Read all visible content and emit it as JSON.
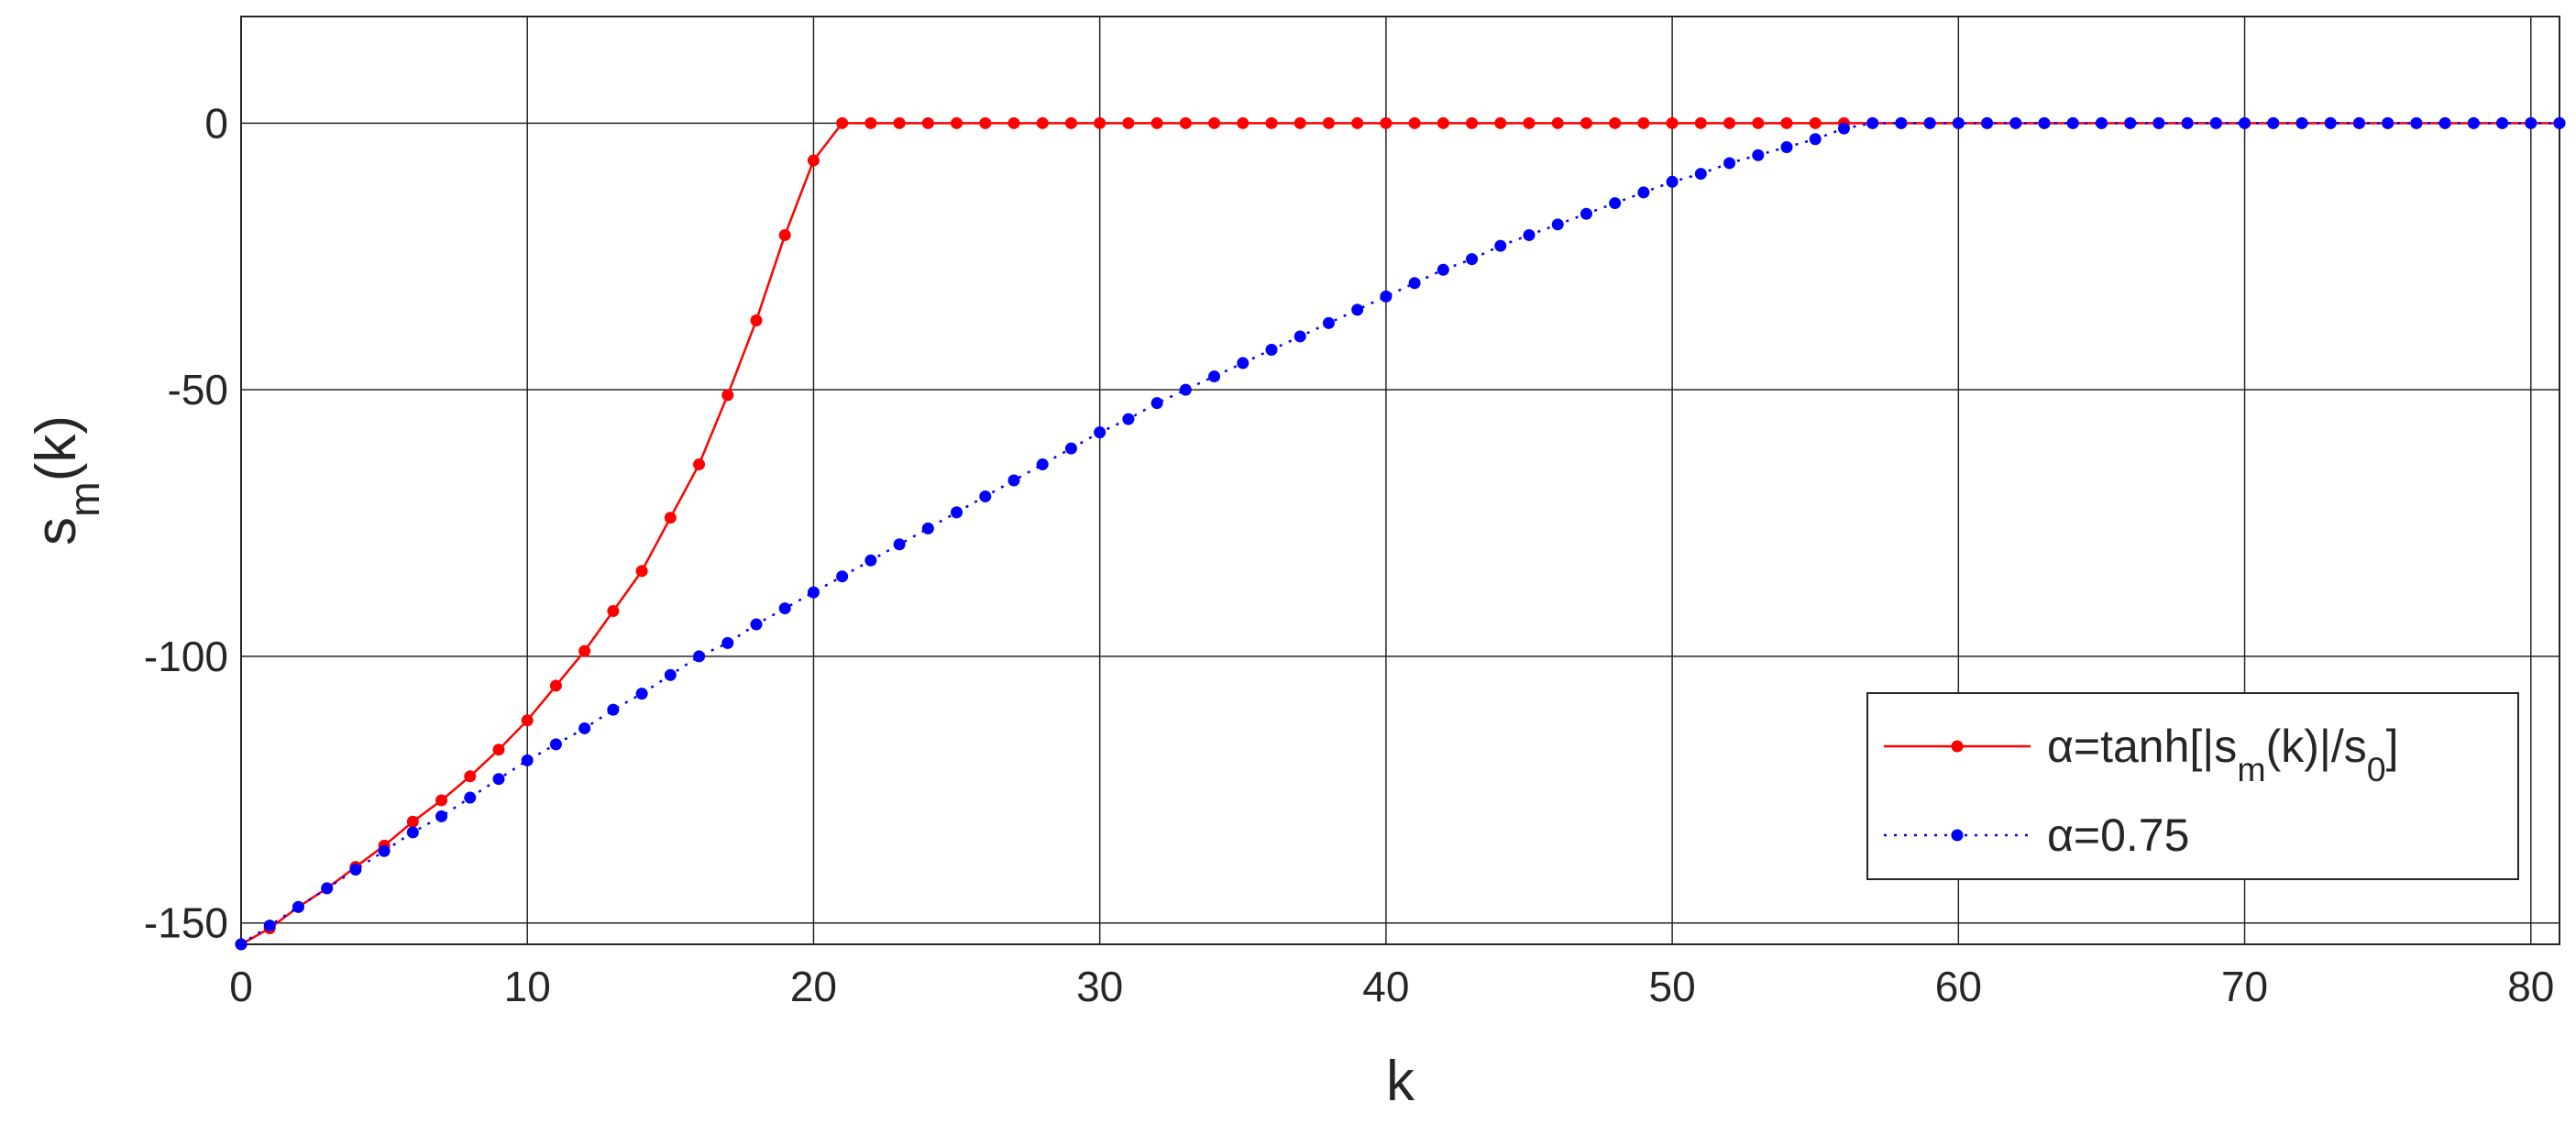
{
  "chart_data": {
    "type": "line",
    "xlabel": "k",
    "ylabel": "s_m(k)",
    "x": [
      0,
      1,
      2,
      3,
      4,
      5,
      6,
      7,
      8,
      9,
      10,
      11,
      12,
      13,
      14,
      15,
      16,
      17,
      18,
      19,
      20,
      21,
      22,
      23,
      24,
      25,
      26,
      27,
      28,
      29,
      30,
      31,
      32,
      33,
      34,
      35,
      36,
      37,
      38,
      39,
      40,
      41,
      42,
      43,
      44,
      45,
      46,
      47,
      48,
      49,
      50,
      51,
      52,
      53,
      54,
      55,
      56,
      57,
      58,
      59,
      60,
      61,
      62,
      63,
      64,
      65,
      66,
      67,
      68,
      69,
      70,
      71,
      72,
      73,
      74,
      75,
      76,
      77,
      78,
      79,
      80,
      81
    ],
    "series": [
      {
        "name": "α=tanh[|s_m(k)|/s_0]",
        "color": "#ff0000",
        "line_style": "solid",
        "values": [
          -154,
          -151,
          -147,
          -143.5,
          -139.5,
          -135.5,
          -131,
          -127,
          -122.5,
          -117.5,
          -112,
          -105.5,
          -99,
          -91.5,
          -84,
          -74,
          -64,
          -51,
          -37,
          -21,
          -7,
          0,
          0,
          0,
          0,
          0,
          0,
          0,
          0,
          0,
          0,
          0,
          0,
          0,
          0,
          0,
          0,
          0,
          0,
          0,
          0,
          0,
          0,
          0,
          0,
          0,
          0,
          0,
          0,
          0,
          0,
          0,
          0,
          0,
          0,
          0,
          0,
          0,
          0,
          0,
          0,
          0,
          0,
          0,
          0,
          0,
          0,
          0,
          0,
          0,
          0,
          0,
          0,
          0,
          0,
          0,
          0,
          0,
          0,
          0,
          0,
          0
        ]
      },
      {
        "name": "α=0.75",
        "color": "#0000ff",
        "line_style": "dotted",
        "values": [
          -154,
          -150.5,
          -147,
          -143.5,
          -140,
          -136.5,
          -133,
          -130,
          -126.5,
          -123,
          -119.5,
          -116.5,
          -113.5,
          -110,
          -107,
          -103.5,
          -100,
          -97.5,
          -94,
          -91,
          -88,
          -85,
          -82,
          -79,
          -76,
          -73,
          -70,
          -67,
          -64,
          -61,
          -58,
          -55.5,
          -52.5,
          -50,
          -47.5,
          -45,
          -42.5,
          -40,
          -37.5,
          -35,
          -32.5,
          -30,
          -27.5,
          -25.5,
          -23,
          -21,
          -19,
          -17,
          -15,
          -13,
          -11,
          -9.5,
          -7.5,
          -6,
          -4.5,
          -3,
          -1,
          0,
          0,
          0,
          0,
          0,
          0,
          0,
          0,
          0,
          0,
          0,
          0,
          0,
          0,
          0,
          0,
          0,
          0,
          0,
          0,
          0,
          0,
          0,
          0,
          0
        ]
      }
    ],
    "xlim": [
      0,
      81
    ],
    "ylim": [
      -154,
      20
    ],
    "xticks": [
      0,
      10,
      20,
      30,
      40,
      50,
      60,
      70,
      80
    ],
    "yticks": [
      -150,
      -100,
      -50,
      0
    ],
    "grid": true,
    "legend": "lower right"
  }
}
